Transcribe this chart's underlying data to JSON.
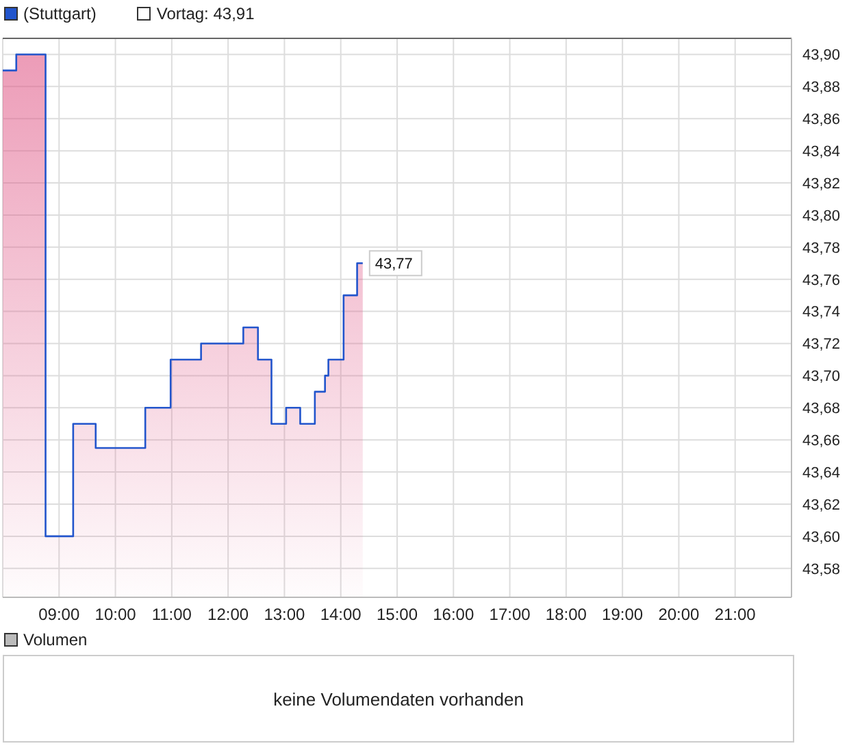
{
  "chart_data": [
    {
      "type": "area",
      "title": "(Stuttgart)",
      "x": [
        8.0,
        8.24,
        8.24,
        8.76,
        8.76,
        9.25,
        9.25,
        9.65,
        9.65,
        10.53,
        10.53,
        10.98,
        10.98,
        11.52,
        11.52,
        12.27,
        12.27,
        12.53,
        12.53,
        12.77,
        12.77,
        13.03,
        13.03,
        13.28,
        13.28,
        13.54,
        13.54,
        13.72,
        13.72,
        13.78,
        13.78,
        14.05,
        14.05,
        14.29,
        14.29,
        14.39
      ],
      "series": [
        {
          "color": "#2255cc",
          "values": [
            43.89,
            43.89,
            43.9,
            43.9,
            43.6,
            43.6,
            43.67,
            43.67,
            43.655,
            43.655,
            43.68,
            43.68,
            43.71,
            43.71,
            43.72,
            43.72,
            43.73,
            43.73,
            43.71,
            43.71,
            43.67,
            43.67,
            43.68,
            43.68,
            43.67,
            43.67,
            43.69,
            43.69,
            43.7,
            43.7,
            43.71,
            43.71,
            43.75,
            43.75,
            43.77,
            43.77
          ]
        }
      ],
      "xlim": [
        8,
        22
      ],
      "xticks": [
        {
          "value": 9,
          "label": "09:00"
        },
        {
          "value": 10,
          "label": "10:00"
        },
        {
          "value": 11,
          "label": "11:00"
        },
        {
          "value": 12,
          "label": "12:00"
        },
        {
          "value": 13,
          "label": "13:00"
        },
        {
          "value": 14,
          "label": "14:00"
        },
        {
          "value": 15,
          "label": "15:00"
        },
        {
          "value": 16,
          "label": "16:00"
        },
        {
          "value": 17,
          "label": "17:00"
        },
        {
          "value": 18,
          "label": "18:00"
        },
        {
          "value": 19,
          "label": "19:00"
        },
        {
          "value": 20,
          "label": "20:00"
        },
        {
          "value": 21,
          "label": "21:00"
        }
      ],
      "ylim": [
        43.562,
        43.91
      ],
      "yticks": [
        {
          "value": 43.58,
          "label": "43,58"
        },
        {
          "value": 43.6,
          "label": "43,60"
        },
        {
          "value": 43.62,
          "label": "43,62"
        },
        {
          "value": 43.64,
          "label": "43,64"
        },
        {
          "value": 43.66,
          "label": "43,66"
        },
        {
          "value": 43.68,
          "label": "43,68"
        },
        {
          "value": 43.7,
          "label": "43,70"
        },
        {
          "value": 43.72,
          "label": "43,72"
        },
        {
          "value": 43.74,
          "label": "43,74"
        },
        {
          "value": 43.76,
          "label": "43,76"
        },
        {
          "value": 43.78,
          "label": "43,78"
        },
        {
          "value": 43.8,
          "label": "43,80"
        },
        {
          "value": 43.82,
          "label": "43,82"
        },
        {
          "value": 43.84,
          "label": "43,84"
        },
        {
          "value": 43.86,
          "label": "43,86"
        },
        {
          "value": 43.88,
          "label": "43,88"
        },
        {
          "value": 43.9,
          "label": "43,90"
        }
      ],
      "ref_lines": [
        {
          "axis": "y",
          "value": 43.91,
          "label": "Vortag: 43,91",
          "color": "#666666"
        }
      ],
      "annotations": [
        {
          "text": "43,77",
          "x": 14.39,
          "y": 43.77
        }
      ],
      "grid": true
    },
    {
      "type": "other",
      "title": "Volumen",
      "annotations": [
        "keine Volumendaten vorhanden"
      ]
    }
  ]
}
